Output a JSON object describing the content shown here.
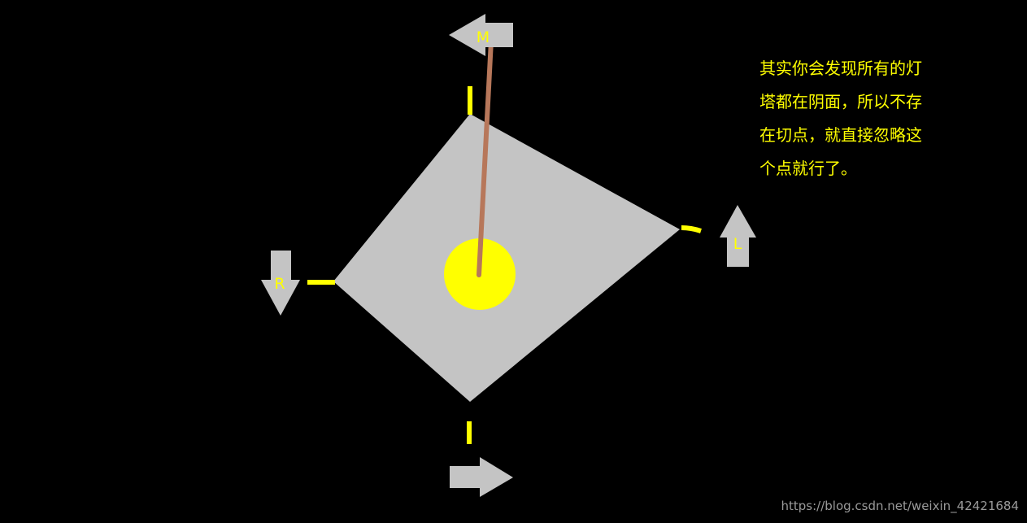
{
  "colors": {
    "background": "#000000",
    "diamond": "#c4c4c4",
    "arrow": "#c4c4c4",
    "highlight": "#ffff00",
    "rod": "#b7775a",
    "watermark": "#9a9a9a"
  },
  "arrows": {
    "top": {
      "label": "M",
      "direction": "left"
    },
    "right": {
      "label": "L",
      "direction": "up"
    },
    "left": {
      "label": "R",
      "direction": "down"
    },
    "bottom": {
      "label": "",
      "direction": "right"
    }
  },
  "note": {
    "lines": [
      "其实你会发现所有的灯",
      "塔都在阴面，所以不存",
      "在切点，就直接忽略这",
      "个点就行了。"
    ]
  },
  "watermark": "https://blog.csdn.net/weixin_42421684"
}
